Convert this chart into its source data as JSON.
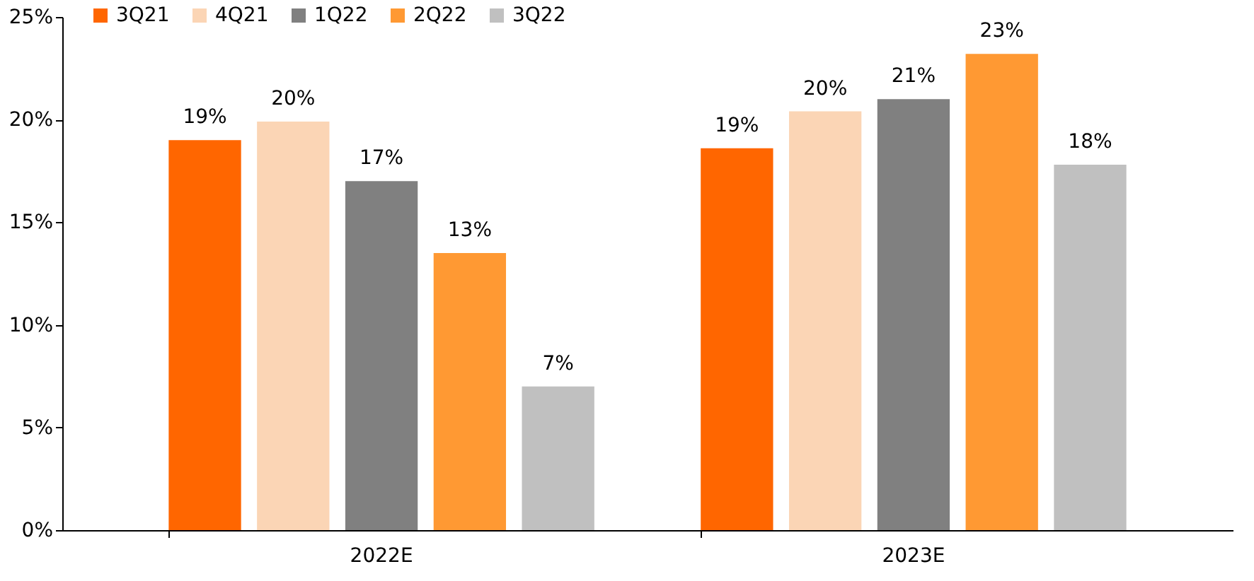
{
  "chart_data": {
    "type": "bar",
    "categories": [
      "2022E",
      "2023E"
    ],
    "series": [
      {
        "name": "3Q21",
        "color": "#ff6600",
        "values": [
          19.0,
          18.6
        ],
        "value_labels": [
          "19%",
          "19%"
        ]
      },
      {
        "name": "4Q21",
        "color": "#fbd5b5",
        "values": [
          19.9,
          20.4
        ],
        "value_labels": [
          "20%",
          "20%"
        ]
      },
      {
        "name": "1Q22",
        "color": "#808080",
        "values": [
          17.0,
          21.0
        ],
        "value_labels": [
          "17%",
          "21%"
        ]
      },
      {
        "name": "2Q22",
        "color": "#ff9933",
        "values": [
          13.5,
          23.2
        ],
        "value_labels": [
          "13%",
          "23%"
        ]
      },
      {
        "name": "3Q22",
        "color": "#c0c0c0",
        "values": [
          7.0,
          17.8
        ],
        "value_labels": [
          "7%",
          "18%"
        ]
      }
    ],
    "ylim": [
      0,
      25
    ],
    "yticks": [
      {
        "value": 0,
        "label": "0%"
      },
      {
        "value": 5,
        "label": "5%"
      },
      {
        "value": 10,
        "label": "10%"
      },
      {
        "value": 15,
        "label": "15%"
      },
      {
        "value": 20,
        "label": "20%"
      },
      {
        "value": 25,
        "label": "25%"
      }
    ],
    "grid": false,
    "legend": "top left"
  }
}
